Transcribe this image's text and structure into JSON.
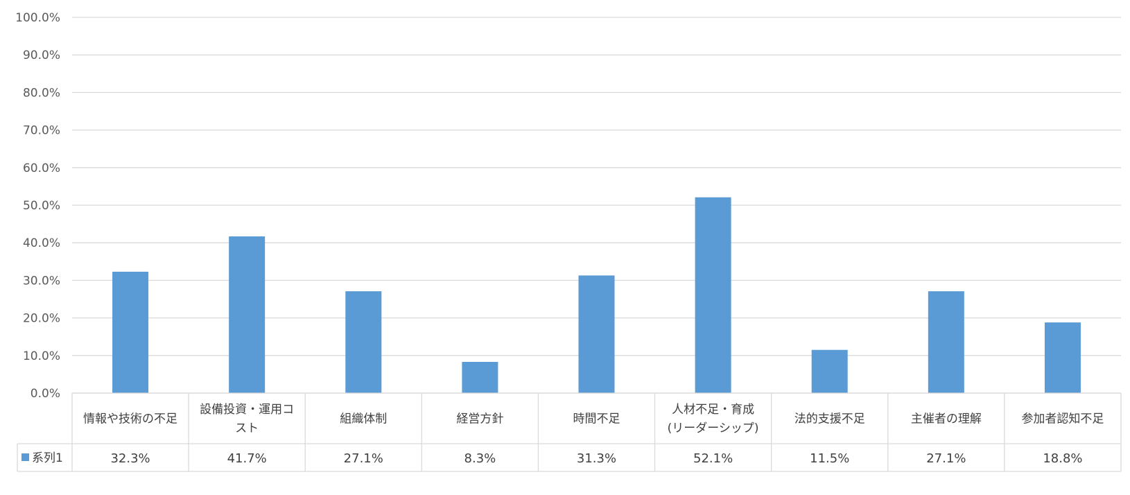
{
  "chart_data": {
    "type": "bar",
    "categories": [
      [
        "情報や技術の不足"
      ],
      [
        "設備投資・運用コ",
        "スト"
      ],
      [
        "組織体制"
      ],
      [
        "経営方針"
      ],
      [
        "時間不足"
      ],
      [
        "人材不足・育成",
        "(リーダーシップ)"
      ],
      [
        "法的支援不足"
      ],
      [
        "主催者の理解"
      ],
      [
        "参加者認知不足"
      ]
    ],
    "series": [
      {
        "name": "系列1",
        "values": [
          32.3,
          41.7,
          27.1,
          8.3,
          31.3,
          52.1,
          11.5,
          27.1,
          18.8
        ],
        "value_labels": [
          "32.3%",
          "41.7%",
          "27.1%",
          "8.3%",
          "31.3%",
          "52.1%",
          "11.5%",
          "27.1%",
          "18.8%"
        ],
        "color": "#5B9BD5"
      }
    ],
    "y_ticks": [
      "0.0%",
      "10.0%",
      "20.0%",
      "30.0%",
      "40.0%",
      "50.0%",
      "60.0%",
      "70.0%",
      "80.0%",
      "90.0%",
      "100.0%"
    ],
    "ylim": [
      0,
      100
    ],
    "grid": true,
    "data_table": true,
    "colors": {
      "gridline": "#D9D9D9",
      "table_border": "#D9D9D9"
    }
  }
}
